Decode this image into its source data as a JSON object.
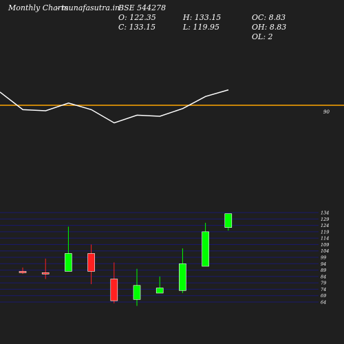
{
  "header": {
    "brand": "Monthly Charts",
    "source": "- munafasutra.in",
    "symbol": "BSE 544278",
    "open": "O: 122.35",
    "close": "C: 133.15",
    "high": "H: 133.15",
    "low": "L: 119.95",
    "oc": "OC: 8.83",
    "oh": "OH: 8.83",
    "ol": "OL: 2"
  },
  "chart_data": [
    {
      "type": "line",
      "name": "indicator",
      "reference_level": 90,
      "reference_label": "90",
      "reference_color": "#ffa500",
      "line_color": "#ffffff",
      "values": [
        96,
        88,
        87.5,
        91,
        88,
        82,
        85.5,
        85,
        88.5,
        94,
        97
      ]
    },
    {
      "type": "candlestick",
      "candles": [
        {
          "o": 88,
          "h": 91,
          "l": 86,
          "c": 87,
          "color": "#ff2020"
        },
        {
          "o": 87,
          "h": 98,
          "l": 82,
          "c": 86,
          "color": "#ff2020"
        },
        {
          "o": 88,
          "h": 123,
          "l": 88,
          "c": 102,
          "color": "#00ff00"
        },
        {
          "o": 102,
          "h": 109,
          "l": 78,
          "c": 88,
          "color": "#ff2020"
        },
        {
          "o": 82,
          "h": 95,
          "l": 63,
          "c": 65,
          "color": "#ff2020"
        },
        {
          "o": 66,
          "h": 90,
          "l": 61,
          "c": 77,
          "color": "#00ff00"
        },
        {
          "o": 71,
          "h": 84,
          "l": 71,
          "c": 75,
          "color": "#00ff00"
        },
        {
          "o": 73,
          "h": 106,
          "l": 71,
          "c": 94,
          "color": "#00ff00"
        },
        {
          "o": 92,
          "h": 126,
          "l": 92,
          "c": 119,
          "color": "#00ff00"
        },
        {
          "o": 122.35,
          "h": 133.15,
          "l": 119.95,
          "c": 133.15,
          "color": "#00ff00"
        }
      ],
      "y_ticks": [
        "134",
        "129",
        "124",
        "119",
        "114",
        "109",
        "104",
        "99",
        "94",
        "89",
        "84",
        "79",
        "74",
        "69",
        "64"
      ],
      "ylim": [
        64,
        134
      ],
      "grid_color": "#1a1a6e"
    }
  ]
}
